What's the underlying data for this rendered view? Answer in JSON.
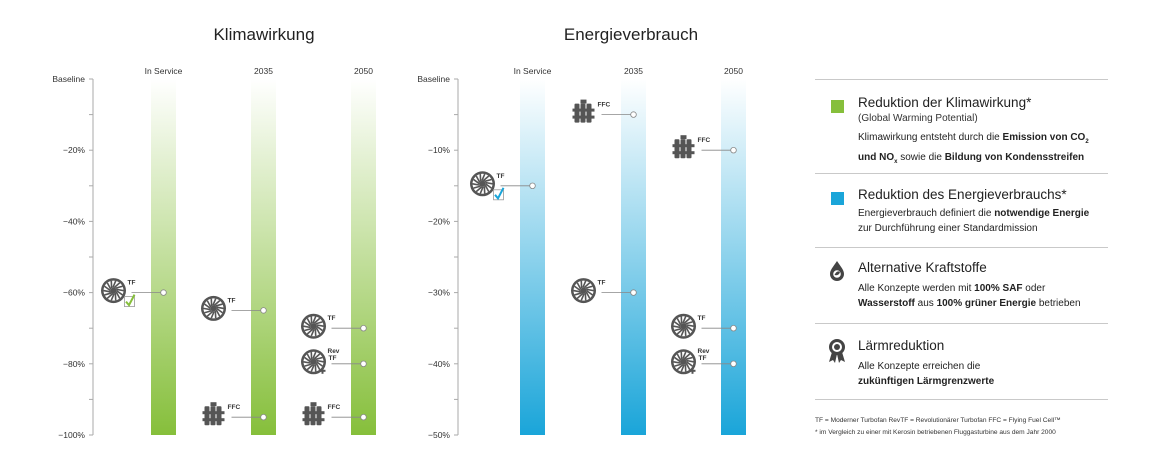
{
  "chart_data": [
    {
      "type": "bar",
      "title": "Klimawirkung",
      "categories": [
        "In Service",
        "2035",
        "2050"
      ],
      "yticks": [
        "Baseline",
        "−20%",
        "−40%",
        "−60%",
        "−80%",
        "−100%"
      ],
      "ylim": [
        0,
        -100
      ],
      "bar_color": "#86bf3b",
      "points": [
        {
          "category": "In Service",
          "label": "TF",
          "icon": "turbofan-icon",
          "value": -60,
          "check": true
        },
        {
          "category": "2035",
          "label": "TF",
          "icon": "turbofan-icon",
          "value": -65
        },
        {
          "category": "2035",
          "label": "FFC",
          "icon": "fuel-cell-icon",
          "value": -95
        },
        {
          "category": "2050",
          "label": "TF",
          "icon": "turbofan-icon",
          "value": -70
        },
        {
          "category": "2050",
          "label": "Rev TF",
          "icon": "rev-turbofan-icon",
          "value": -80
        },
        {
          "category": "2050",
          "label": "FFC",
          "icon": "fuel-cell-icon",
          "value": -95
        }
      ]
    },
    {
      "type": "bar",
      "title": "Energieverbrauch",
      "categories": [
        "In Service",
        "2035",
        "2050"
      ],
      "yticks": [
        "Baseline",
        "−10%",
        "−20%",
        "−30%",
        "−40%",
        "−50%"
      ],
      "ylim": [
        0,
        -50
      ],
      "bar_color": "#1aa5d9",
      "points": [
        {
          "category": "In Service",
          "label": "TF",
          "icon": "turbofan-icon",
          "value": -15,
          "check": true
        },
        {
          "category": "2035",
          "label": "FFC",
          "icon": "fuel-cell-icon",
          "value": -5
        },
        {
          "category": "2035",
          "label": "TF",
          "icon": "turbofan-icon",
          "value": -30
        },
        {
          "category": "2050",
          "label": "FFC",
          "icon": "fuel-cell-icon",
          "value": -10
        },
        {
          "category": "2050",
          "label": "TF",
          "icon": "turbofan-icon",
          "value": -35
        },
        {
          "category": "2050",
          "label": "Rev TF",
          "icon": "rev-turbofan-icon",
          "value": -40
        }
      ]
    }
  ],
  "legend": {
    "items": [
      {
        "icon": "green-square",
        "color": "#86bf3b",
        "title": "Reduktion der Klimawirkung*",
        "subtitle": "(Global Warming Potential)",
        "d1a": "Klimawirkung entsteht durch die ",
        "d1b": "Emission von CO",
        "d1sub": "2",
        "d2a": "und NO",
        "d2sub": "x",
        "d2b": " sowie die ",
        "d2c": "Bildung von Kondensstreifen"
      },
      {
        "icon": "blue-square",
        "color": "#1aa5d9",
        "title": "Reduktion des Energieverbrauchs*",
        "d1a": "Energieverbrauch definiert die ",
        "d1b": "notwendige Energie",
        "d2a": "zur Durchführung einer Standardmission"
      },
      {
        "icon": "fuel-drop-icon",
        "title": "Alternative Kraftstoffe",
        "d1a": "Alle Konzepte werden mit ",
        "d1b": "100% SAF",
        "d1c": " oder",
        "d2a": "Wasserstoff",
        "d2b": " aus ",
        "d2c": "100% grüner Energie",
        "d2d": " betrieben"
      },
      {
        "icon": "award-icon",
        "title": "Lärmreduktion",
        "d1a": "Alle Konzepte erreichen die",
        "d2a": "zukünftigen Lärmgrenzwerte"
      }
    ],
    "footnote1": "TF = Moderner Turbofan    RevTF = Revolutionärer Turbofan    FFC = Flying Fuel Cell™",
    "footnote2": "* im Vergleich zu einer mit Kerosin betriebenen Fluggasturbine aus dem Jahr 2000"
  }
}
